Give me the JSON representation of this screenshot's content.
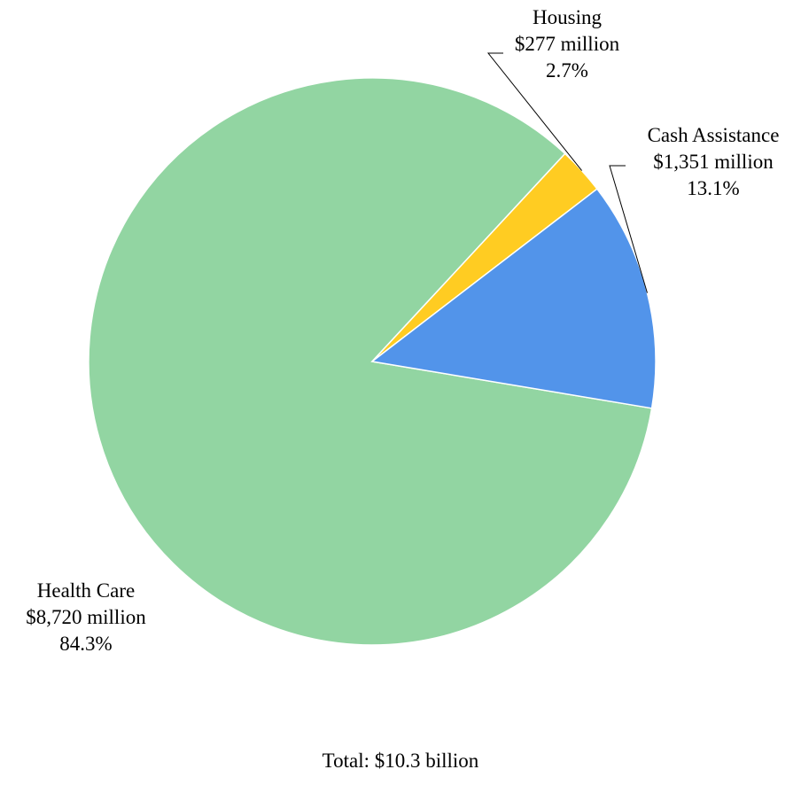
{
  "chart_data": {
    "type": "pie",
    "slices": [
      {
        "label": "Health Care",
        "value": 8720,
        "amount_text": "$8,720 million",
        "percent_text": "84.3%",
        "color": "#92d5a2"
      },
      {
        "label": "Housing",
        "value": 277,
        "amount_text": "$277 million",
        "percent_text": "2.7%",
        "color": "#ffcc22"
      },
      {
        "label": "Cash Assistance",
        "value": 1351,
        "amount_text": "$1,351 million",
        "percent_text": "13.1%",
        "color": "#5294ea"
      }
    ],
    "total_text": "Total:  $10.3 billion"
  }
}
